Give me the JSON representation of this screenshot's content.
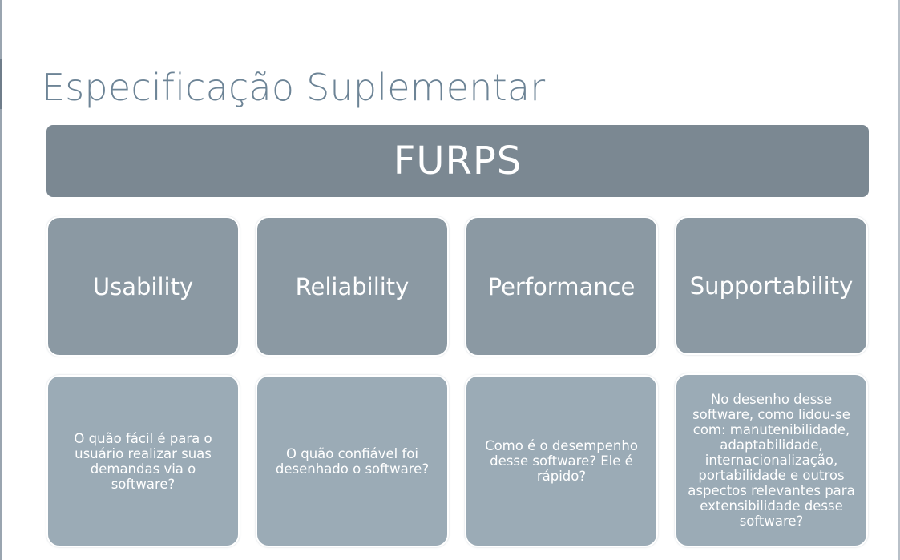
{
  "slide": {
    "title": "Especificação Suplementar",
    "header": "FURPS"
  },
  "columns": [
    {
      "category": "Usability",
      "description": "O quão fácil é para o usuário realizar suas demandas via o software?"
    },
    {
      "category": "Reliability",
      "description": "O quão confiável foi desenhado o software?"
    },
    {
      "category": "Performance",
      "description": "Como é o desempenho desse software? Ele é rápido?"
    },
    {
      "category": "Supportability",
      "description": "No desenho desse software, como lidou-se com: manutenibilidade, adaptabilidade, internacionalização, portabilidade e outros aspectos relevantes para extensibilidade desse software?"
    }
  ],
  "colors": {
    "title": "#6d8496",
    "header_bar": "#7b8892",
    "category_box": "#8b99a3",
    "description_box": "#9babb6"
  }
}
